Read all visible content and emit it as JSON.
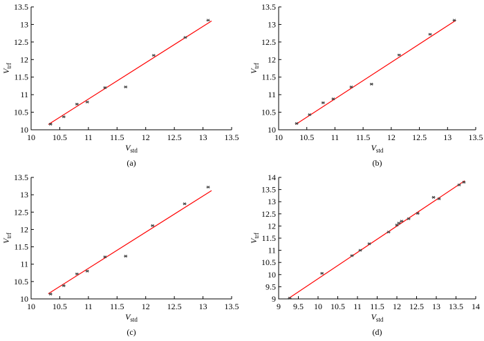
{
  "chart_data": [
    {
      "type": "scatter",
      "caption": "(a)",
      "xlabel": {
        "main": "V",
        "sub": "std"
      },
      "ylabel": {
        "main": "V",
        "sub": "trf"
      },
      "xlim": [
        10,
        13.5
      ],
      "ylim": [
        10,
        13.5
      ],
      "xticks": [
        10,
        10.5,
        11,
        11.5,
        12,
        12.5,
        13,
        13.5
      ],
      "yticks": [
        10,
        10.5,
        11,
        11.5,
        12,
        12.5,
        13,
        13.5
      ],
      "marker_color": "#444444",
      "x": [
        10.34,
        10.57,
        10.8,
        10.98,
        11.29,
        11.65,
        12.14,
        12.69,
        13.09
      ],
      "y": [
        10.16,
        10.37,
        10.73,
        10.79,
        11.2,
        11.22,
        12.12,
        12.63,
        13.12
      ],
      "fit": {
        "color": "#ff0000",
        "x": [
          10.3,
          13.15
        ],
        "y": [
          10.15,
          13.1
        ]
      }
    },
    {
      "type": "scatter",
      "caption": "(b)",
      "xlabel": {
        "main": "V",
        "sub": "std"
      },
      "ylabel": {
        "main": "V",
        "sub": "trf"
      },
      "xlim": [
        10,
        13.5
      ],
      "ylim": [
        10,
        13.5
      ],
      "xticks": [
        10,
        10.5,
        11,
        11.5,
        12,
        12.5,
        13,
        13.5
      ],
      "yticks": [
        10,
        10.5,
        11,
        11.5,
        12,
        12.5,
        13,
        13.5
      ],
      "marker_color": "#444444",
      "x": [
        10.32,
        10.55,
        10.79,
        10.97,
        11.29,
        11.65,
        12.14,
        12.69,
        13.12
      ],
      "y": [
        10.18,
        10.43,
        10.77,
        10.88,
        11.22,
        11.3,
        12.13,
        12.72,
        13.12
      ],
      "fit": {
        "color": "#ff0000",
        "x": [
          10.3,
          13.15
        ],
        "y": [
          10.15,
          13.12
        ]
      }
    },
    {
      "type": "scatter",
      "caption": "(c)",
      "xlabel": {
        "main": "V",
        "sub": "std"
      },
      "ylabel": {
        "main": "V",
        "sub": "trf"
      },
      "xlim": [
        10,
        13.5
      ],
      "ylim": [
        10,
        13.5
      ],
      "xticks": [
        10,
        10.5,
        11,
        11.5,
        12,
        12.5,
        13,
        13.5
      ],
      "yticks": [
        10,
        10.5,
        11,
        11.5,
        12,
        12.5,
        13,
        13.5
      ],
      "marker_color": "#444444",
      "x": [
        10.34,
        10.57,
        10.8,
        10.98,
        11.29,
        11.65,
        12.12,
        12.68,
        13.09
      ],
      "y": [
        10.14,
        10.38,
        10.72,
        10.8,
        11.21,
        11.23,
        12.11,
        12.74,
        13.22
      ],
      "fit": {
        "color": "#ff0000",
        "x": [
          10.3,
          13.15
        ],
        "y": [
          10.15,
          13.12
        ]
      }
    },
    {
      "type": "scatter",
      "caption": "(d)",
      "xlabel": {
        "main": "V",
        "sub": "std"
      },
      "ylabel": {
        "main": "V",
        "sub": "trf"
      },
      "xlim": [
        9,
        14
      ],
      "ylim": [
        9,
        14
      ],
      "xticks": [
        9,
        9.5,
        10,
        10.5,
        11,
        11.5,
        12,
        12.5,
        13,
        13.5,
        14
      ],
      "yticks": [
        9,
        9.5,
        10,
        10.5,
        11,
        11.5,
        12,
        12.5,
        13,
        13.5,
        14
      ],
      "marker_color": "#444444",
      "x": [
        9.28,
        10.1,
        10.86,
        11.07,
        11.3,
        11.79,
        12.0,
        12.05,
        12.12,
        12.3,
        12.53,
        12.93,
        13.07,
        13.58,
        13.7
      ],
      "y": [
        9.03,
        10.05,
        10.78,
        11.0,
        11.27,
        11.75,
        12.04,
        12.12,
        12.2,
        12.3,
        12.52,
        13.18,
        13.12,
        13.69,
        13.8
      ],
      "fit": {
        "color": "#ff0000",
        "x": [
          9.26,
          13.72
        ],
        "y": [
          9.03,
          13.86
        ]
      }
    }
  ]
}
